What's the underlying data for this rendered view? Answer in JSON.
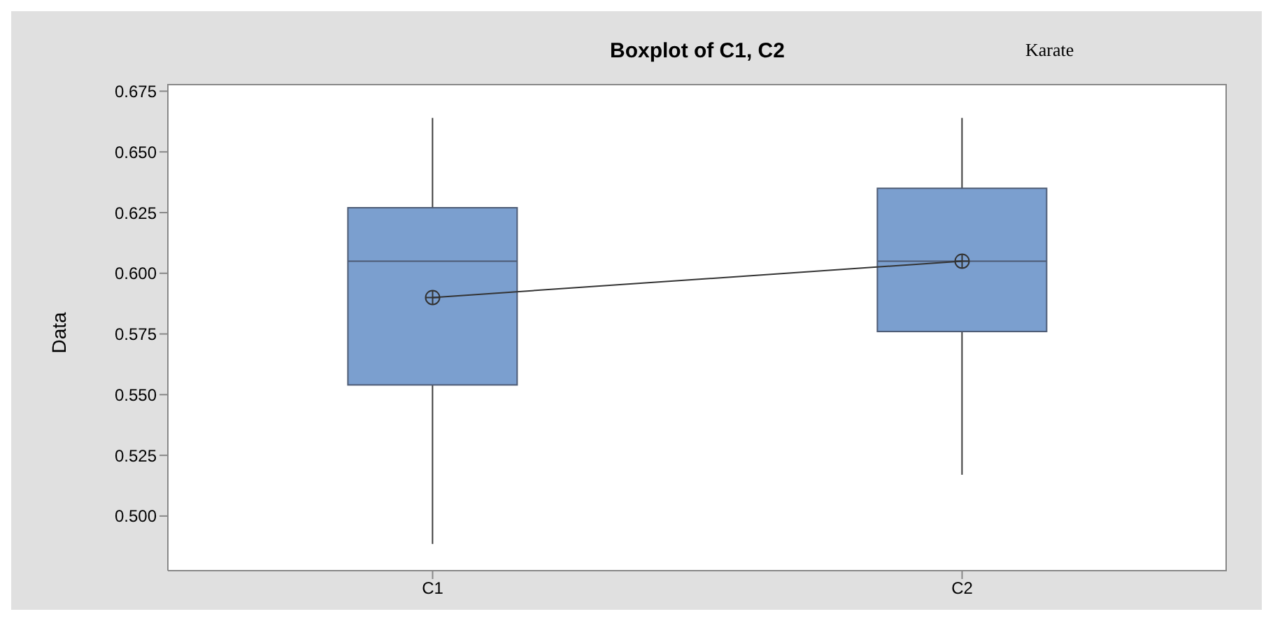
{
  "chart_data": {
    "type": "box",
    "title": "Boxplot of C1, C2",
    "ylabel": "Data",
    "annotations": [
      "Karate"
    ],
    "categories": [
      "C1",
      "C2"
    ],
    "boxes": [
      {
        "low": 0.4885,
        "q1": 0.554,
        "median": 0.605,
        "q3": 0.627,
        "high": 0.664
      },
      {
        "low": 0.517,
        "q1": 0.576,
        "median": 0.605,
        "q3": 0.635,
        "high": 0.664
      }
    ],
    "series": [
      {
        "type": "line",
        "x": [
          "C1",
          "C2"
        ],
        "values": [
          0.59,
          0.605
        ],
        "color": "#333333",
        "marker": "circle"
      }
    ],
    "color": "#7b9fcf",
    "grid": false,
    "legend": false,
    "ylim": [
      0.4775,
      0.678
    ],
    "yticks": [
      {
        "value": 0.5,
        "label": "0.500"
      },
      {
        "value": 0.525,
        "label": "0.525"
      },
      {
        "value": 0.55,
        "label": "0.550"
      },
      {
        "value": 0.575,
        "label": "0.575"
      },
      {
        "value": 0.6,
        "label": "0.600"
      },
      {
        "value": 0.625,
        "label": "0.625"
      },
      {
        "value": 0.65,
        "label": "0.650"
      },
      {
        "value": 0.675,
        "label": "0.675"
      }
    ]
  }
}
